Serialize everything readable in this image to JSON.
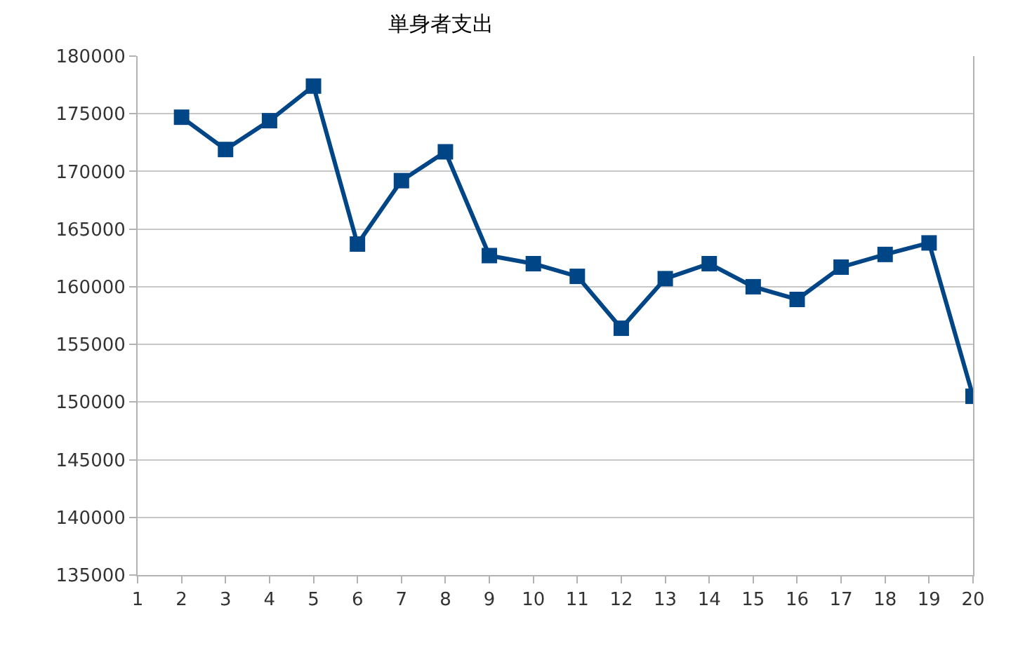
{
  "chart_data": {
    "type": "line",
    "title": "単身者支出",
    "x": [
      2,
      3,
      4,
      5,
      6,
      7,
      8,
      9,
      10,
      11,
      12,
      13,
      14,
      15,
      16,
      17,
      18,
      19,
      20
    ],
    "series": [
      {
        "color": "#004586",
        "values": [
          174700,
          171900,
          174400,
          177400,
          163700,
          169200,
          171700,
          162700,
          162000,
          160900,
          156400,
          160700,
          162000,
          160000,
          158900,
          161700,
          162800,
          163800,
          150500
        ]
      }
    ],
    "xlim": [
      1,
      20
    ],
    "xticks": [
      1,
      2,
      3,
      4,
      5,
      6,
      7,
      8,
      9,
      10,
      11,
      12,
      13,
      14,
      15,
      16,
      17,
      18,
      19,
      20
    ],
    "ylim": [
      135000,
      180000
    ],
    "yticks": [
      135000,
      140000,
      145000,
      150000,
      155000,
      160000,
      165000,
      170000,
      175000,
      180000
    ],
    "grid": "y",
    "marker": "square",
    "line_style": "solid"
  }
}
